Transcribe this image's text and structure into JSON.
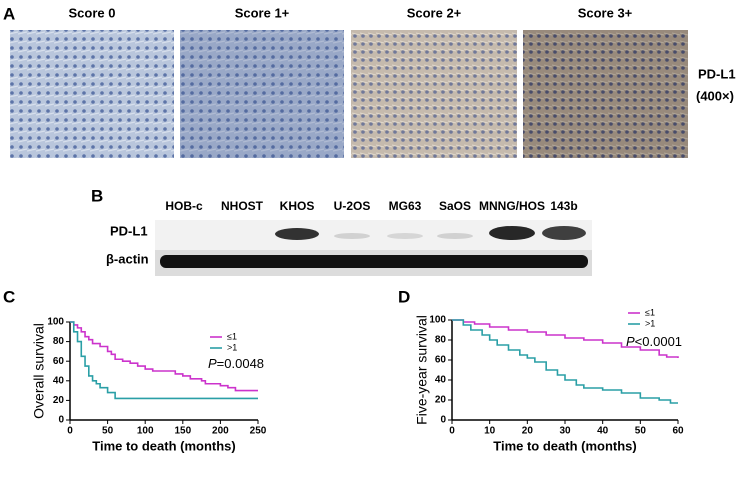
{
  "panel_a": {
    "label": "A",
    "scores": [
      "Score 0",
      "Score 1+",
      "Score 2+",
      "Score 3+"
    ],
    "marker": "PD-L1",
    "magnification": "(400×)"
  },
  "panel_b": {
    "label": "B",
    "lanes": [
      "HOB-c",
      "NHOST",
      "KHOS",
      "U-2OS",
      "MG63",
      "SaOS",
      "MNNG/HOS",
      "143b"
    ],
    "rows": [
      "PD-L1",
      "β-actin"
    ]
  },
  "chart_data": [
    {
      "type": "line",
      "label": "C",
      "x_label": "Time to death (months)",
      "y_label": "Overall survival",
      "stat": "P",
      "stat_text": "=0.0048",
      "xlim": [
        0,
        250
      ],
      "ylim": [
        0,
        100
      ],
      "xticks": [
        0,
        50,
        100,
        150,
        200,
        250
      ],
      "yticks": [
        0,
        20,
        40,
        60,
        80,
        100
      ],
      "step": true,
      "series": [
        {
          "name": "≤1",
          "color": "#cc33cc",
          "x": [
            0,
            5,
            10,
            15,
            20,
            25,
            30,
            40,
            50,
            55,
            60,
            70,
            80,
            90,
            100,
            110,
            130,
            140,
            150,
            160,
            175,
            180,
            200,
            210,
            220,
            250
          ],
          "values": [
            100,
            97,
            94,
            90,
            85,
            82,
            78,
            75,
            70,
            67,
            62,
            60,
            58,
            55,
            52,
            50,
            50,
            47,
            45,
            42,
            40,
            37,
            35,
            33,
            30,
            30
          ]
        },
        {
          "name": ">1",
          "color": "#2a9fa6",
          "x": [
            0,
            5,
            10,
            15,
            20,
            25,
            30,
            35,
            40,
            50,
            60,
            250
          ],
          "values": [
            100,
            90,
            80,
            65,
            55,
            45,
            40,
            37,
            33,
            28,
            22,
            22
          ]
        }
      ]
    },
    {
      "type": "line",
      "label": "D",
      "x_label": "Time to death (months)",
      "y_label": "Five-year survival",
      "stat": "P",
      "stat_text": "<0.0001",
      "xlim": [
        0,
        60
      ],
      "ylim": [
        0,
        100
      ],
      "xticks": [
        0,
        10,
        20,
        30,
        40,
        50,
        60
      ],
      "yticks": [
        0,
        20,
        40,
        60,
        80,
        100
      ],
      "step": true,
      "series": [
        {
          "name": "≤1",
          "color": "#cc33cc",
          "x": [
            0,
            3,
            6,
            10,
            15,
            20,
            25,
            30,
            35,
            40,
            45,
            50,
            55,
            57,
            60
          ],
          "values": [
            100,
            98,
            96,
            93,
            90,
            88,
            85,
            82,
            80,
            77,
            73,
            70,
            65,
            63,
            62
          ]
        },
        {
          "name": ">1",
          "color": "#2a9fa6",
          "x": [
            0,
            3,
            5,
            8,
            10,
            12,
            15,
            18,
            20,
            22,
            25,
            28,
            30,
            33,
            35,
            40,
            45,
            50,
            55,
            58,
            60
          ],
          "values": [
            100,
            95,
            90,
            85,
            80,
            75,
            70,
            65,
            62,
            58,
            50,
            45,
            40,
            35,
            32,
            30,
            27,
            22,
            20,
            17,
            17
          ]
        }
      ]
    }
  ]
}
